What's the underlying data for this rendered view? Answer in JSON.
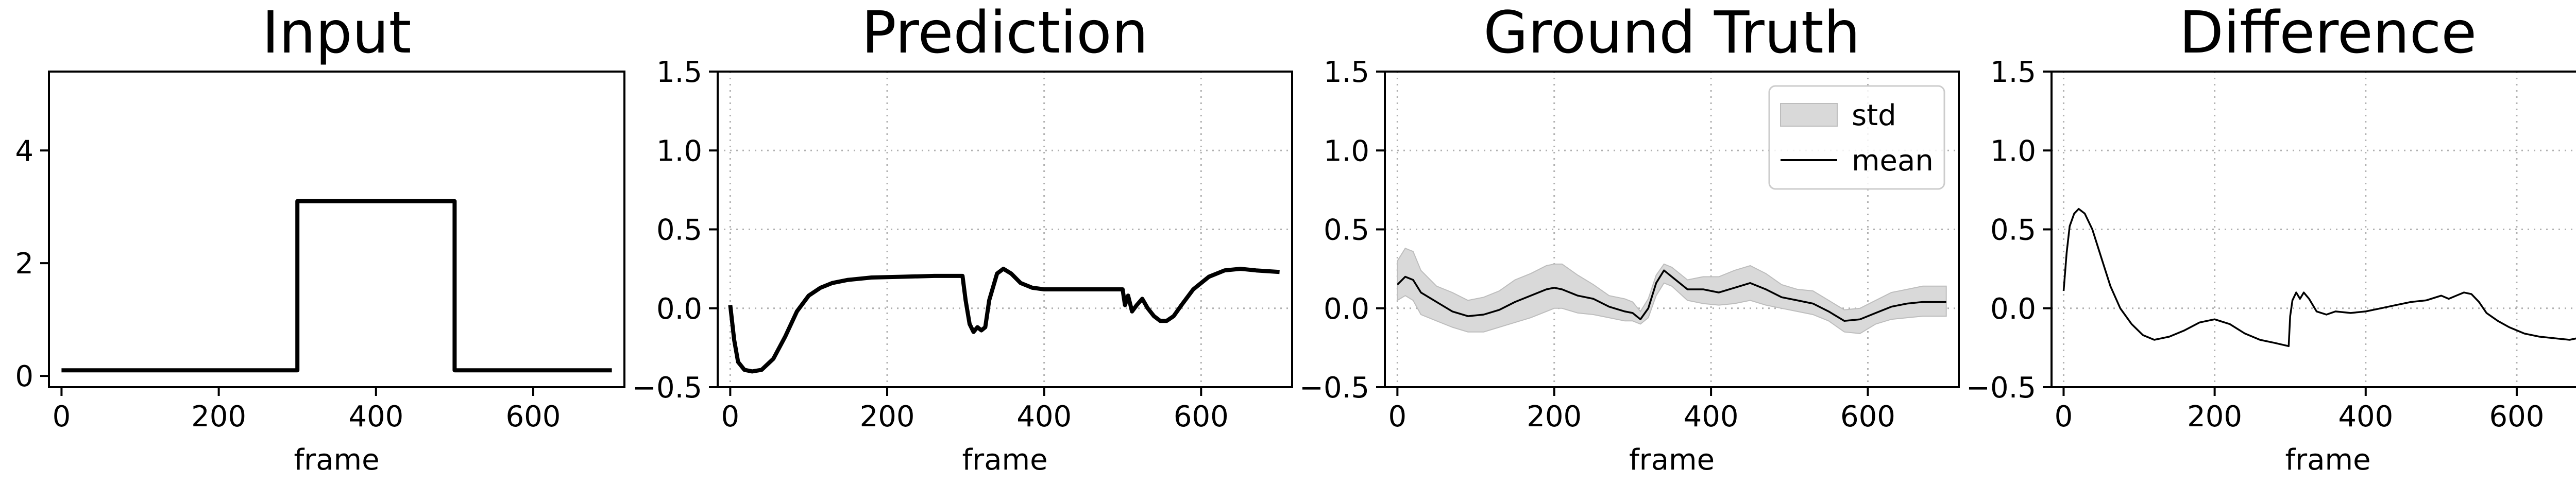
{
  "chart_data": [
    {
      "type": "line",
      "title": "Input",
      "xlabel": "frame",
      "ylabel": "",
      "xlim": [
        -16,
        716
      ],
      "ylim": [
        -0.2,
        5.4
      ],
      "xticks": [
        0,
        200,
        400,
        600
      ],
      "yticks": [
        0,
        2,
        4
      ],
      "grid": false,
      "series": [
        {
          "values": [
            [
              0,
              0.1
            ],
            [
              300,
              0.1
            ],
            [
              300,
              3.1
            ],
            [
              500,
              3.1
            ],
            [
              500,
              0.1
            ],
            [
              700,
              0.1
            ]
          ],
          "color": "#000000"
        }
      ]
    },
    {
      "type": "line",
      "title": "Prediction",
      "xlabel": "frame",
      "ylabel": "",
      "xlim": [
        -16,
        716
      ],
      "ylim": [
        -0.5,
        1.5
      ],
      "xticks": [
        0,
        200,
        400,
        600
      ],
      "yticks": [
        -0.5,
        0.0,
        0.5,
        1.0,
        1.5
      ],
      "grid": true,
      "series": [
        {
          "values": [
            [
              0,
              0.02
            ],
            [
              5,
              -0.2
            ],
            [
              10,
              -0.34
            ],
            [
              18,
              -0.39
            ],
            [
              28,
              -0.4
            ],
            [
              40,
              -0.39
            ],
            [
              55,
              -0.32
            ],
            [
              70,
              -0.18
            ],
            [
              85,
              -0.02
            ],
            [
              100,
              0.08
            ],
            [
              115,
              0.13
            ],
            [
              130,
              0.16
            ],
            [
              150,
              0.18
            ],
            [
              180,
              0.195
            ],
            [
              220,
              0.2
            ],
            [
              260,
              0.205
            ],
            [
              296,
              0.205
            ],
            [
              300,
              0.05
            ],
            [
              305,
              -0.1
            ],
            [
              310,
              -0.15
            ],
            [
              315,
              -0.12
            ],
            [
              320,
              -0.14
            ],
            [
              325,
              -0.12
            ],
            [
              330,
              0.05
            ],
            [
              340,
              0.22
            ],
            [
              348,
              0.25
            ],
            [
              358,
              0.22
            ],
            [
              370,
              0.16
            ],
            [
              385,
              0.13
            ],
            [
              400,
              0.12
            ],
            [
              450,
              0.12
            ],
            [
              500,
              0.12
            ],
            [
              503,
              0.02
            ],
            [
              507,
              0.08
            ],
            [
              512,
              -0.02
            ],
            [
              518,
              0.02
            ],
            [
              525,
              0.06
            ],
            [
              532,
              0.0
            ],
            [
              540,
              -0.05
            ],
            [
              548,
              -0.08
            ],
            [
              556,
              -0.08
            ],
            [
              565,
              -0.05
            ],
            [
              575,
              0.02
            ],
            [
              590,
              0.12
            ],
            [
              610,
              0.2
            ],
            [
              630,
              0.24
            ],
            [
              650,
              0.25
            ],
            [
              670,
              0.24
            ],
            [
              700,
              0.23
            ]
          ],
          "color": "#000000"
        }
      ]
    },
    {
      "type": "area",
      "title": "Ground Truth",
      "xlabel": "frame",
      "ylabel": "",
      "xlim": [
        -16,
        716
      ],
      "ylim": [
        -0.5,
        1.5
      ],
      "xticks": [
        0,
        200,
        400,
        600
      ],
      "yticks": [
        -0.5,
        0.0,
        0.5,
        1.0,
        1.5
      ],
      "grid": true,
      "legend_position": "top-right",
      "series": [
        {
          "name": "std",
          "x": [
            0,
            10,
            20,
            30,
            50,
            70,
            90,
            110,
            130,
            150,
            170,
            190,
            200,
            210,
            230,
            250,
            270,
            290,
            300,
            310,
            320,
            330,
            340,
            350,
            370,
            390,
            410,
            430,
            450,
            470,
            490,
            510,
            530,
            550,
            570,
            590,
            610,
            630,
            650,
            670,
            690,
            700
          ],
          "lower": [
            0.05,
            0.08,
            0.05,
            -0.04,
            -0.08,
            -0.12,
            -0.15,
            -0.15,
            -0.12,
            -0.09,
            -0.06,
            -0.02,
            0.0,
            0.0,
            -0.03,
            -0.04,
            -0.06,
            -0.08,
            -0.08,
            -0.1,
            -0.06,
            0.08,
            0.16,
            0.14,
            0.05,
            0.03,
            0.02,
            0.03,
            0.05,
            0.02,
            0.0,
            -0.02,
            -0.04,
            -0.08,
            -0.15,
            -0.16,
            -0.1,
            -0.07,
            -0.06,
            -0.05,
            -0.05,
            -0.05
          ],
          "upper": [
            0.3,
            0.38,
            0.36,
            0.24,
            0.14,
            0.1,
            0.05,
            0.07,
            0.11,
            0.18,
            0.22,
            0.27,
            0.28,
            0.28,
            0.21,
            0.15,
            0.08,
            0.06,
            0.04,
            -0.02,
            0.06,
            0.21,
            0.28,
            0.26,
            0.18,
            0.2,
            0.2,
            0.24,
            0.27,
            0.22,
            0.15,
            0.12,
            0.11,
            0.05,
            -0.01,
            0.0,
            0.05,
            0.1,
            0.12,
            0.14,
            0.14,
            0.14
          ],
          "color": "#d9d9d9"
        },
        {
          "name": "mean",
          "x": [
            0,
            10,
            20,
            30,
            50,
            70,
            90,
            110,
            130,
            150,
            170,
            190,
            200,
            210,
            230,
            250,
            270,
            290,
            300,
            310,
            320,
            330,
            340,
            350,
            370,
            390,
            410,
            430,
            450,
            470,
            490,
            510,
            530,
            550,
            570,
            590,
            610,
            630,
            650,
            670,
            690,
            700
          ],
          "values": [
            0.15,
            0.2,
            0.18,
            0.1,
            0.04,
            -0.02,
            -0.05,
            -0.04,
            -0.01,
            0.04,
            0.08,
            0.12,
            0.13,
            0.12,
            0.08,
            0.06,
            0.01,
            -0.02,
            -0.03,
            -0.07,
            0.0,
            0.16,
            0.24,
            0.2,
            0.12,
            0.12,
            0.1,
            0.13,
            0.16,
            0.12,
            0.07,
            0.05,
            0.03,
            -0.02,
            -0.08,
            -0.07,
            -0.03,
            0.01,
            0.03,
            0.04,
            0.04,
            0.04
          ],
          "color": "#000000"
        }
      ]
    },
    {
      "type": "line",
      "title": "Difference",
      "xlabel": "frame",
      "ylabel": "",
      "xlim": [
        -16,
        716
      ],
      "ylim": [
        -0.5,
        1.5
      ],
      "xticks": [
        0,
        200,
        400,
        600
      ],
      "yticks": [
        -0.5,
        0.0,
        0.5,
        1.0,
        1.5
      ],
      "grid": true,
      "series": [
        {
          "values": [
            [
              0,
              0.11
            ],
            [
              4,
              0.35
            ],
            [
              8,
              0.52
            ],
            [
              14,
              0.6
            ],
            [
              20,
              0.63
            ],
            [
              28,
              0.6
            ],
            [
              38,
              0.5
            ],
            [
              50,
              0.32
            ],
            [
              62,
              0.14
            ],
            [
              75,
              0.0
            ],
            [
              90,
              -0.1
            ],
            [
              105,
              -0.17
            ],
            [
              120,
              -0.2
            ],
            [
              140,
              -0.18
            ],
            [
              160,
              -0.14
            ],
            [
              180,
              -0.09
            ],
            [
              200,
              -0.07
            ],
            [
              220,
              -0.1
            ],
            [
              240,
              -0.16
            ],
            [
              260,
              -0.2
            ],
            [
              280,
              -0.22
            ],
            [
              298,
              -0.24
            ],
            [
              300,
              -0.05
            ],
            [
              303,
              0.05
            ],
            [
              308,
              0.1
            ],
            [
              313,
              0.06
            ],
            [
              318,
              0.1
            ],
            [
              325,
              0.06
            ],
            [
              335,
              -0.02
            ],
            [
              348,
              -0.04
            ],
            [
              360,
              -0.02
            ],
            [
              380,
              -0.03
            ],
            [
              400,
              -0.02
            ],
            [
              420,
              0.0
            ],
            [
              440,
              0.02
            ],
            [
              460,
              0.04
            ],
            [
              480,
              0.05
            ],
            [
              500,
              0.08
            ],
            [
              510,
              0.06
            ],
            [
              520,
              0.08
            ],
            [
              530,
              0.1
            ],
            [
              540,
              0.09
            ],
            [
              550,
              0.04
            ],
            [
              560,
              -0.03
            ],
            [
              575,
              -0.08
            ],
            [
              590,
              -0.12
            ],
            [
              610,
              -0.16
            ],
            [
              630,
              -0.18
            ],
            [
              650,
              -0.19
            ],
            [
              670,
              -0.2
            ],
            [
              690,
              -0.18
            ],
            [
              700,
              -0.18
            ]
          ],
          "color": "#000000"
        }
      ]
    }
  ]
}
